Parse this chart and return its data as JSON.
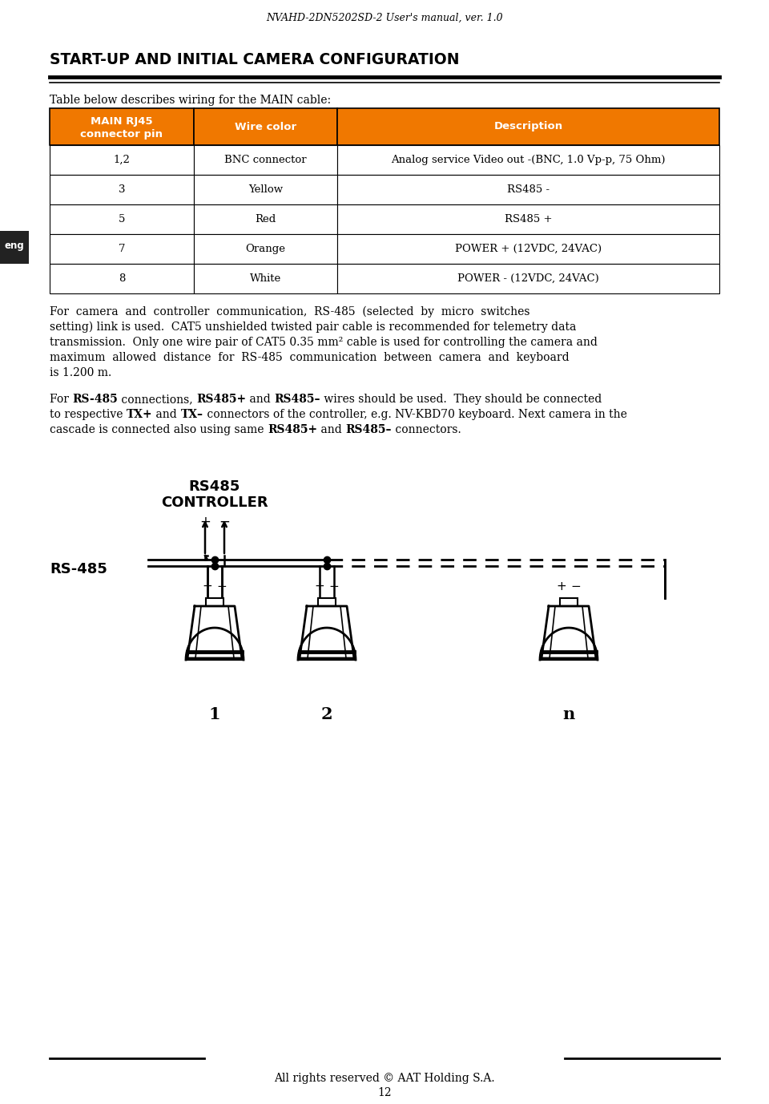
{
  "page_title": "NVAHD-2DN5202SD-2 User's manual, ver. 1.0",
  "section_title": "START-UP AND INITIAL CAMERA CONFIGURATION",
  "table_intro": "Table below describes wiring for the MAIN cable:",
  "table_headers": [
    "MAIN RJ45\nconnector pin",
    "Wire color",
    "Description"
  ],
  "table_rows": [
    [
      "1,2",
      "BNC connector",
      "Analog service Video out -(BNC, 1.0 Vp-p, 75 Ohm)"
    ],
    [
      "3",
      "Yellow",
      "RS485 -"
    ],
    [
      "5",
      "Red",
      "RS485 +"
    ],
    [
      "7",
      "Orange",
      "POWER + (12VDC, 24VAC)"
    ],
    [
      "8",
      "White",
      "POWER - (12VDC, 24VAC)"
    ]
  ],
  "header_bg": "#F07800",
  "header_fg": "#FFFFFF",
  "table_border": "#000000",
  "cell_bg": "#FFFFFF",
  "footer_text": "All rights reserved © AAT Holding S.A.",
  "page_number": "12",
  "eng_label": "eng",
  "diagram_camera_labels": [
    "1",
    "2",
    "n"
  ],
  "bg_color": "#FFFFFF",
  "text_color": "#000000",
  "orange_color": "#F07800"
}
